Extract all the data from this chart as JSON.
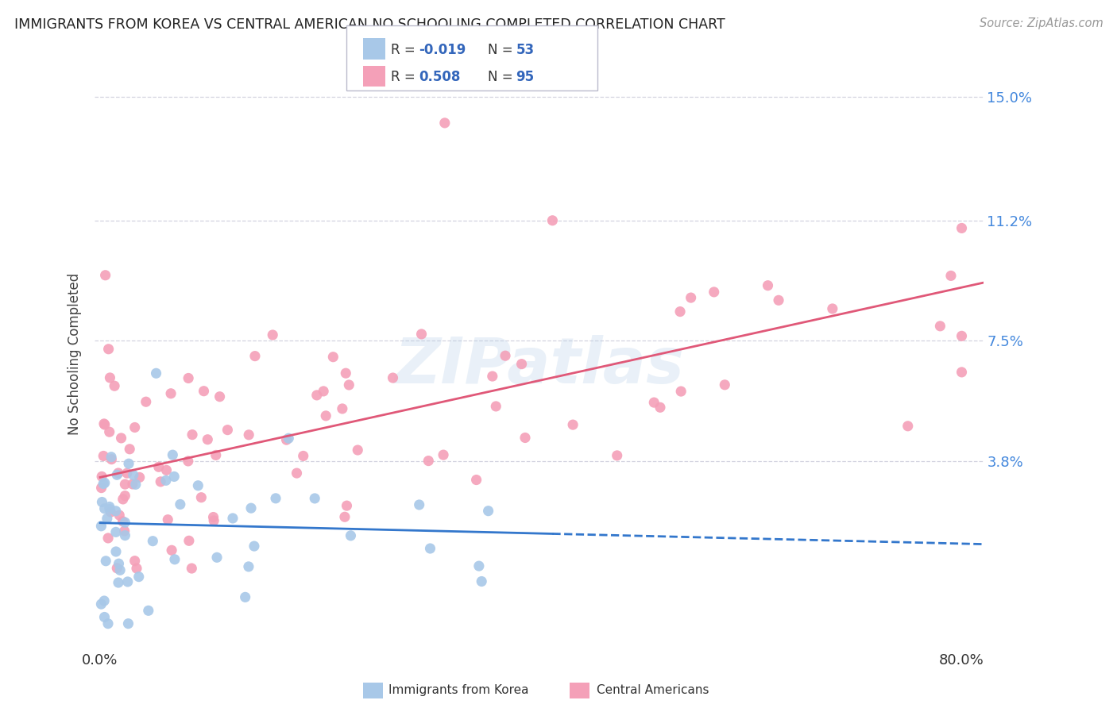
{
  "title": "IMMIGRANTS FROM KOREA VS CENTRAL AMERICAN NO SCHOOLING COMPLETED CORRELATION CHART",
  "source": "Source: ZipAtlas.com",
  "ylabel": "No Schooling Completed",
  "ytick_labels": [
    "3.8%",
    "7.5%",
    "11.2%",
    "15.0%"
  ],
  "ytick_values": [
    0.038,
    0.075,
    0.112,
    0.15
  ],
  "xlim": [
    -0.005,
    0.82
  ],
  "ylim": [
    -0.02,
    0.162
  ],
  "korea_R": -0.019,
  "korea_N": 53,
  "central_R": 0.508,
  "central_N": 95,
  "korea_color": "#a8c8e8",
  "central_color": "#f4a0b8",
  "korea_line_color": "#3377cc",
  "central_line_color": "#e05878",
  "watermark": "ZIPatlas",
  "background_color": "#ffffff",
  "grid_color": "#c8c8d8",
  "title_color": "#222222",
  "axis_label_color": "#444444",
  "right_axis_color": "#4488dd",
  "legend_color": "#3366bb"
}
